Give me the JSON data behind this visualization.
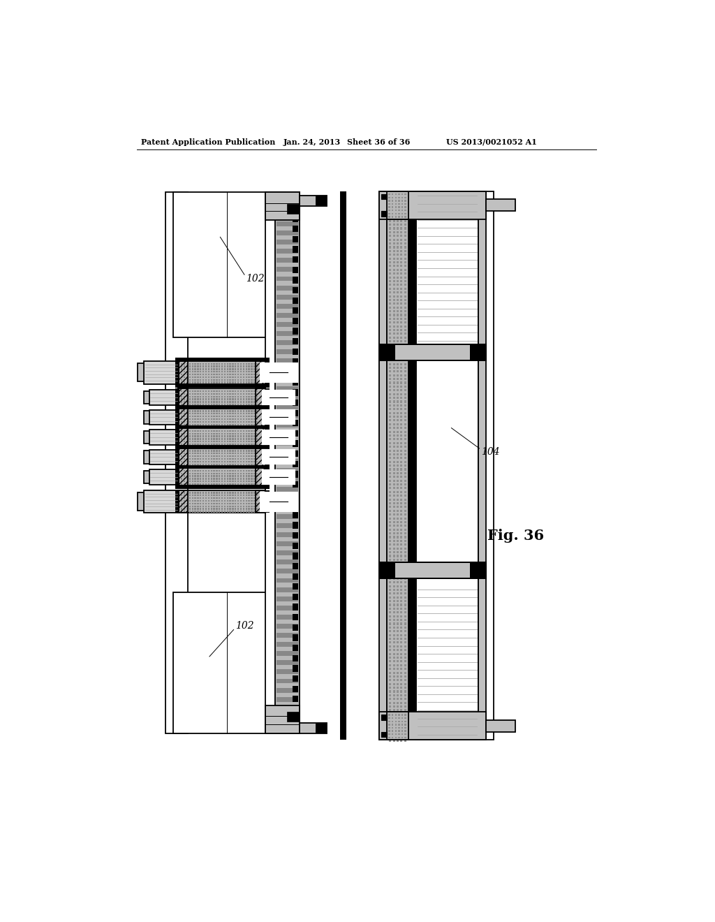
{
  "header_left": "Patent Application Publication",
  "header_mid1": "Jan. 24, 2013",
  "header_mid2": "Sheet 36 of 36",
  "header_right": "US 2013/0021052 A1",
  "fig_label": "Fig. 36",
  "label_102": "102",
  "label_104": "104",
  "bg": "#ffffff",
  "black": "#000000",
  "gray_light": "#d8d8d8",
  "gray_med": "#aaaaaa",
  "gray_dark": "#707070",
  "gray_fill": "#c0c0c0",
  "dot_fill": "#b8b8b8"
}
